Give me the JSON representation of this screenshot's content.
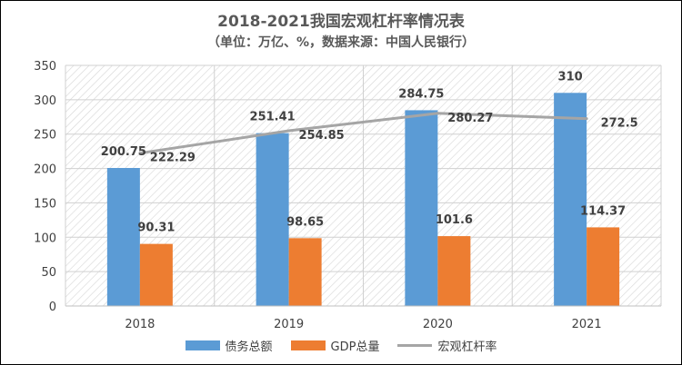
{
  "chart_data": {
    "type": "bar",
    "title": "2018-2021我国宏观杠杆率情况表",
    "subtitle": "（单位：万亿、%，数据来源：中国人民银行）",
    "categories": [
      "2018",
      "2019",
      "2020",
      "2021"
    ],
    "series": [
      {
        "name": "债务总额",
        "type": "bar",
        "color": "#5B9BD5",
        "values": [
          200.75,
          251.41,
          284.75,
          310
        ]
      },
      {
        "name": "GDP总量",
        "type": "bar",
        "color": "#ED7D31",
        "values": [
          90.31,
          98.65,
          101.6,
          114.37
        ]
      },
      {
        "name": "宏观杠杆率",
        "type": "line",
        "color": "#A5A5A5",
        "values": [
          222.29,
          254.85,
          280.27,
          272.5
        ]
      }
    ],
    "data_labels": {
      "债务总额": [
        "200.75",
        "251.41",
        "284.75",
        "310"
      ],
      "GDP总量": [
        "90.31",
        "98.65",
        "101.6",
        "114.37"
      ],
      "宏观杠杆率": [
        "222.29",
        "254.85",
        "280.27",
        "272.5"
      ]
    },
    "yticks": [
      "0",
      "50",
      "100",
      "150",
      "200",
      "250",
      "300",
      "350"
    ],
    "ylim": [
      0,
      350
    ],
    "grid": true,
    "legend_position": "bottom"
  }
}
